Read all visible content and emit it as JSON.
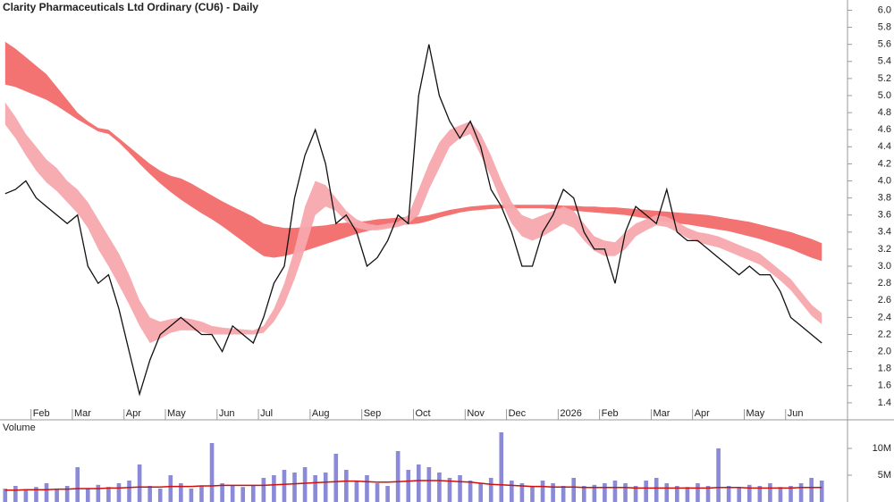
{
  "chart_data": [
    {
      "type": "line",
      "title": "Clarity Pharmaceuticals Ltd Ordinary (CU6) - Daily",
      "categories": [
        null,
        null,
        null,
        "Feb",
        null,
        null,
        null,
        "Mar",
        null,
        null,
        null,
        null,
        "Apr",
        null,
        null,
        null,
        "May",
        null,
        null,
        null,
        null,
        "Jun",
        null,
        null,
        null,
        "Jul",
        null,
        null,
        null,
        null,
        "Aug",
        null,
        null,
        null,
        null,
        "Sep",
        null,
        null,
        null,
        null,
        "Oct",
        null,
        null,
        null,
        null,
        "Nov",
        null,
        null,
        null,
        "Dec",
        null,
        null,
        null,
        null,
        "2026",
        null,
        null,
        null,
        "Feb",
        null,
        null,
        null,
        null,
        "Mar",
        null,
        null,
        null,
        "Apr",
        null,
        null,
        null,
        null,
        "May",
        null,
        null,
        null,
        "Jun",
        null,
        null,
        null
      ],
      "series": [
        {
          "color": "#111111",
          "values": [
            3.85,
            3.9,
            4.0,
            3.8,
            3.7,
            3.6,
            3.5,
            3.6,
            3.0,
            2.8,
            2.9,
            2.5,
            2.0,
            1.5,
            1.9,
            2.2,
            2.3,
            2.4,
            2.3,
            2.2,
            2.2,
            2.0,
            2.3,
            2.2,
            2.1,
            2.4,
            2.8,
            3.0,
            3.8,
            4.3,
            4.6,
            4.2,
            3.5,
            3.6,
            3.4,
            3.0,
            3.1,
            3.3,
            3.6,
            3.5,
            5.0,
            5.6,
            5.0,
            4.7,
            4.5,
            4.7,
            4.4,
            3.9,
            3.7,
            3.4,
            3.0,
            3.0,
            3.4,
            3.6,
            3.9,
            3.8,
            3.4,
            3.2,
            3.2,
            2.8,
            3.4,
            3.7,
            3.6,
            3.5,
            3.9,
            3.4,
            3.3,
            3.3,
            3.2,
            3.1,
            3.0,
            2.9,
            3.0,
            2.9,
            2.9,
            2.7,
            2.4,
            2.3,
            2.2,
            2.1
          ]
        }
      ],
      "bands": [
        {
          "color": "#f26a6a",
          "upper": [
            5.63,
            5.55,
            5.45,
            5.35,
            5.25,
            5.1,
            4.95,
            4.8,
            4.7,
            4.62,
            4.6,
            4.5,
            4.4,
            4.3,
            4.2,
            4.12,
            4.06,
            4.03,
            3.97,
            3.9,
            3.83,
            3.76,
            3.7,
            3.64,
            3.58,
            3.5,
            3.47,
            3.45,
            3.45,
            3.46,
            3.47,
            3.48,
            3.5,
            3.51,
            3.52,
            3.53,
            3.55,
            3.56,
            3.57,
            3.58,
            3.58,
            3.6,
            3.63,
            3.66,
            3.68,
            3.7,
            3.71,
            3.72,
            3.72,
            3.72,
            3.72,
            3.72,
            3.72,
            3.72,
            3.71,
            3.71,
            3.7,
            3.7,
            3.69,
            3.69,
            3.68,
            3.67,
            3.66,
            3.65,
            3.64,
            3.63,
            3.62,
            3.61,
            3.6,
            3.58,
            3.56,
            3.54,
            3.52,
            3.49,
            3.46,
            3.43,
            3.4,
            3.36,
            3.32,
            3.27
          ],
          "lower": [
            5.13,
            5.1,
            5.05,
            5.0,
            4.95,
            4.88,
            4.8,
            4.72,
            4.65,
            4.58,
            4.55,
            4.45,
            4.33,
            4.2,
            4.08,
            3.97,
            3.87,
            3.78,
            3.7,
            3.62,
            3.55,
            3.47,
            3.38,
            3.29,
            3.2,
            3.12,
            3.1,
            3.12,
            3.15,
            3.18,
            3.22,
            3.26,
            3.3,
            3.34,
            3.38,
            3.41,
            3.44,
            3.46,
            3.48,
            3.49,
            3.5,
            3.53,
            3.57,
            3.6,
            3.63,
            3.65,
            3.66,
            3.67,
            3.68,
            3.68,
            3.68,
            3.68,
            3.68,
            3.67,
            3.66,
            3.65,
            3.64,
            3.63,
            3.62,
            3.61,
            3.6,
            3.58,
            3.56,
            3.54,
            3.52,
            3.5,
            3.49,
            3.47,
            3.45,
            3.43,
            3.41,
            3.38,
            3.35,
            3.32,
            3.28,
            3.24,
            3.2,
            3.15,
            3.1,
            3.06
          ]
        },
        {
          "color": "#f7a8ad",
          "upper": [
            4.92,
            4.75,
            4.55,
            4.4,
            4.25,
            4.15,
            4.0,
            3.9,
            3.75,
            3.55,
            3.35,
            3.15,
            2.9,
            2.6,
            2.4,
            2.35,
            2.38,
            2.4,
            2.38,
            2.35,
            2.3,
            2.28,
            2.27,
            2.26,
            2.25,
            2.3,
            2.5,
            2.8,
            3.2,
            3.7,
            4.0,
            3.95,
            3.8,
            3.65,
            3.55,
            3.5,
            3.48,
            3.5,
            3.52,
            3.6,
            3.9,
            4.2,
            4.45,
            4.6,
            4.65,
            4.7,
            4.55,
            4.3,
            4.0,
            3.75,
            3.6,
            3.55,
            3.6,
            3.65,
            3.7,
            3.65,
            3.5,
            3.35,
            3.3,
            3.28,
            3.4,
            3.5,
            3.55,
            3.6,
            3.58,
            3.52,
            3.45,
            3.4,
            3.38,
            3.35,
            3.3,
            3.25,
            3.2,
            3.15,
            3.05,
            2.95,
            2.85,
            2.7,
            2.55,
            2.45
          ],
          "lower": [
            4.66,
            4.5,
            4.3,
            4.12,
            3.98,
            3.88,
            3.75,
            3.62,
            3.45,
            3.2,
            3.0,
            2.78,
            2.55,
            2.3,
            2.1,
            2.15,
            2.22,
            2.25,
            2.25,
            2.23,
            2.2,
            2.2,
            2.2,
            2.2,
            2.2,
            2.22,
            2.35,
            2.55,
            2.85,
            3.2,
            3.6,
            3.7,
            3.65,
            3.52,
            3.45,
            3.42,
            3.42,
            3.44,
            3.46,
            3.5,
            3.6,
            3.9,
            4.15,
            4.4,
            4.5,
            4.55,
            4.3,
            4.05,
            3.75,
            3.5,
            3.35,
            3.3,
            3.35,
            3.42,
            3.5,
            3.45,
            3.3,
            3.18,
            3.12,
            3.12,
            3.2,
            3.35,
            3.42,
            3.48,
            3.46,
            3.4,
            3.33,
            3.28,
            3.25,
            3.22,
            3.17,
            3.12,
            3.07,
            3.02,
            2.93,
            2.83,
            2.72,
            2.57,
            2.42,
            2.32
          ]
        }
      ],
      "ylim": [
        1.2,
        6.12
      ],
      "yticks": [
        {
          "value": 6,
          "label": "6.0"
        },
        5.8,
        5.6,
        5.4,
        5.2,
        {
          "value": 5,
          "label": "5.0"
        },
        4.8,
        4.6,
        4.4,
        4.2,
        {
          "value": 4,
          "label": "4.0"
        },
        3.8,
        3.6,
        3.4,
        3.2,
        {
          "value": 3,
          "label": "3.0"
        },
        2.8,
        2.6,
        2.4,
        2.2,
        {
          "value": 2,
          "label": "2.0"
        },
        1.8,
        1.6,
        1.4
      ]
    },
    {
      "type": "bar",
      "title": "Volume",
      "color": "#8a8ad8",
      "values": [
        2.5,
        3,
        2.2,
        2.8,
        3.5,
        2.4,
        3,
        6.5,
        2.6,
        3.2,
        2.8,
        3.5,
        4,
        7,
        3,
        2.5,
        5,
        3.5,
        2.5,
        3,
        11,
        3.5,
        3,
        2.8,
        3.2,
        4.5,
        5,
        6,
        5.5,
        6.5,
        5,
        5.5,
        9,
        6,
        4,
        5,
        3.5,
        3,
        9.5,
        6,
        7,
        6.5,
        5.5,
        4.5,
        5,
        4,
        3.5,
        4.5,
        13,
        4,
        3.5,
        3,
        4,
        3.5,
        3,
        4.5,
        3,
        3.2,
        3.5,
        4,
        3.5,
        3,
        4,
        4.5,
        3.5,
        3,
        2.8,
        3.5,
        3,
        10,
        3,
        2.8,
        3.2,
        3,
        3.5,
        2.8,
        3,
        3.5,
        4.5,
        4
      ],
      "line": {
        "color": "#cc1111",
        "values": [
          2.2,
          2.2,
          2.3,
          2.3,
          2.3,
          2.4,
          2.4,
          2.5,
          2.5,
          2.5,
          2.6,
          2.6,
          2.7,
          2.8,
          2.8,
          2.8,
          2.9,
          2.9,
          2.9,
          3.0,
          3.0,
          3.1,
          3.1,
          3.1,
          3.1,
          3.1,
          3.2,
          3.3,
          3.4,
          3.5,
          3.6,
          3.7,
          3.8,
          3.9,
          3.9,
          3.8,
          3.7,
          3.7,
          3.8,
          3.9,
          4.0,
          4.0,
          4.0,
          3.9,
          3.8,
          3.7,
          3.5,
          3.3,
          3.2,
          3.1,
          3.0,
          2.9,
          2.9,
          2.8,
          2.8,
          2.8,
          2.7,
          2.7,
          2.7,
          2.7,
          2.7,
          2.6,
          2.6,
          2.6,
          2.6,
          2.6,
          2.6,
          2.6,
          2.6,
          2.7,
          2.7,
          2.7,
          2.6,
          2.6,
          2.6,
          2.6,
          2.6,
          2.7,
          2.7,
          2.7
        ]
      },
      "ylim": [
        0,
        15
      ],
      "yticks": [
        {
          "value": 5,
          "label": "5M"
        },
        {
          "value": 10,
          "label": "10M"
        }
      ]
    }
  ]
}
